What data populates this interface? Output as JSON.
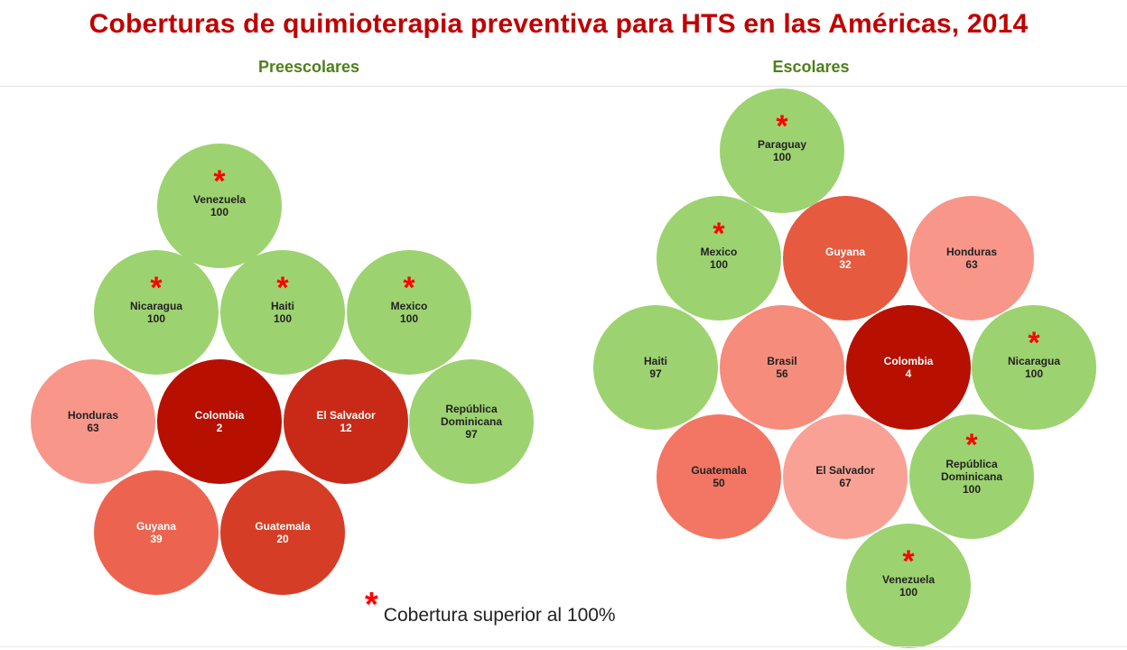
{
  "title": "Coberturas de quimioterapia preventiva para HTS en las Américas, 2014",
  "legend": {
    "symbol": "*",
    "text": "Cobertura superior al 100%"
  },
  "colors": {
    "green": "#9dd270",
    "title_red": "#c00000",
    "subtitle_green": "#4f7f1c",
    "star_red": "#ff0000"
  },
  "chart_data": [
    {
      "type": "bubble",
      "title": "Preescolares",
      "nodes": [
        {
          "name": "Venezuela",
          "value": 100,
          "star": true,
          "color": "#9dd270"
        },
        {
          "name": "Nicaragua",
          "value": 100,
          "star": true,
          "color": "#9dd270"
        },
        {
          "name": "Haiti",
          "value": 100,
          "star": true,
          "color": "#9dd270"
        },
        {
          "name": "Mexico",
          "value": 100,
          "star": true,
          "color": "#9dd270"
        },
        {
          "name": "Honduras",
          "value": 63,
          "star": false,
          "color": "#f8968a"
        },
        {
          "name": "Colombia",
          "value": 2,
          "star": false,
          "color": "#b70f00"
        },
        {
          "name": "El Salvador",
          "value": 12,
          "star": false,
          "color": "#c92a18"
        },
        {
          "name": "República Dominicana",
          "value": 97,
          "star": false,
          "color": "#9dd270"
        },
        {
          "name": "Guyana",
          "value": 39,
          "star": false,
          "color": "#ec6450"
        },
        {
          "name": "Guatemala",
          "value": 20,
          "star": false,
          "color": "#d63d26"
        }
      ]
    },
    {
      "type": "bubble",
      "title": "Escolares",
      "nodes": [
        {
          "name": "Paraguay",
          "value": 100,
          "star": true,
          "color": "#9dd270"
        },
        {
          "name": "Mexico",
          "value": 100,
          "star": true,
          "color": "#9dd270"
        },
        {
          "name": "Guyana",
          "value": 32,
          "star": false,
          "color": "#e65a40"
        },
        {
          "name": "Honduras",
          "value": 63,
          "star": false,
          "color": "#f8968a"
        },
        {
          "name": "Haiti",
          "value": 97,
          "star": false,
          "color": "#9dd270"
        },
        {
          "name": "Brasil",
          "value": 56,
          "star": false,
          "color": "#f58c7c"
        },
        {
          "name": "Colombia",
          "value": 4,
          "star": false,
          "color": "#b70f00"
        },
        {
          "name": "Nicaragua",
          "value": 100,
          "star": true,
          "color": "#9dd270"
        },
        {
          "name": "Guatemala",
          "value": 50,
          "star": false,
          "color": "#f27663"
        },
        {
          "name": "El Salvador",
          "value": 67,
          "star": false,
          "color": "#f9a195"
        },
        {
          "name": "República Dominicana",
          "value": 100,
          "star": true,
          "color": "#9dd270"
        },
        {
          "name": "Venezuela",
          "value": 100,
          "star": true,
          "color": "#9dd270"
        }
      ]
    }
  ]
}
